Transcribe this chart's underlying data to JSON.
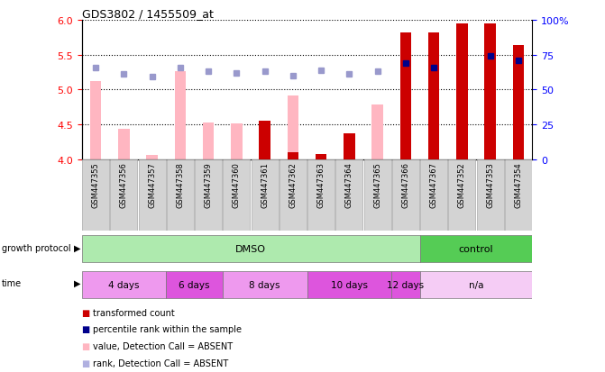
{
  "title": "GDS3802 / 1455509_at",
  "samples": [
    "GSM447355",
    "GSM447356",
    "GSM447357",
    "GSM447358",
    "GSM447359",
    "GSM447360",
    "GSM447361",
    "GSM447362",
    "GSM447363",
    "GSM447364",
    "GSM447365",
    "GSM447366",
    "GSM447367",
    "GSM447352",
    "GSM447353",
    "GSM447354"
  ],
  "red_values": [
    null,
    null,
    null,
    null,
    null,
    null,
    4.55,
    4.1,
    4.08,
    4.38,
    null,
    null,
    null,
    null,
    null,
    null
  ],
  "red_dark_values": [
    null,
    null,
    null,
    null,
    null,
    null,
    null,
    null,
    null,
    null,
    null,
    5.82,
    5.82,
    5.95,
    5.95,
    5.63
  ],
  "pink_values": [
    5.12,
    4.44,
    4.06,
    5.26,
    4.53,
    4.52,
    null,
    4.92,
    null,
    null,
    4.78,
    null,
    null,
    null,
    null,
    null
  ],
  "blue_dark_values": [
    null,
    null,
    null,
    null,
    null,
    null,
    null,
    null,
    null,
    null,
    null,
    5.38,
    5.32,
    null,
    5.48,
    5.42
  ],
  "blue_light_values": [
    5.32,
    5.22,
    5.18,
    5.32,
    5.26,
    5.24,
    5.26,
    5.2,
    5.28,
    5.22,
    5.26,
    null,
    null,
    null,
    null,
    null
  ],
  "ylim": [
    4.0,
    6.0
  ],
  "y2lim": [
    0,
    100
  ],
  "yticks": [
    4.0,
    4.5,
    5.0,
    5.5,
    6.0
  ],
  "y2ticks": [
    0,
    25,
    50,
    75,
    100
  ],
  "growth_protocol_groups": [
    {
      "label": "DMSO",
      "start": 0,
      "end": 12,
      "color": "#aeeaae"
    },
    {
      "label": "control",
      "start": 12,
      "end": 16,
      "color": "#55cc55"
    }
  ],
  "time_groups": [
    {
      "label": "4 days",
      "start": 0,
      "end": 3,
      "color": "#ee99ee"
    },
    {
      "label": "6 days",
      "start": 3,
      "end": 5,
      "color": "#dd55dd"
    },
    {
      "label": "8 days",
      "start": 5,
      "end": 8,
      "color": "#ee99ee"
    },
    {
      "label": "10 days",
      "start": 8,
      "end": 11,
      "color": "#dd55dd"
    },
    {
      "label": "12 days",
      "start": 11,
      "end": 12,
      "color": "#dd55dd"
    },
    {
      "label": "n/a",
      "start": 12,
      "end": 16,
      "color": "#f5ccf5"
    }
  ],
  "legend_items": [
    {
      "label": "transformed count",
      "color": "#CC0000"
    },
    {
      "label": "percentile rank within the sample",
      "color": "#00008B"
    },
    {
      "label": "value, Detection Call = ABSENT",
      "color": "#FFB6C1"
    },
    {
      "label": "rank, Detection Call = ABSENT",
      "color": "#B0B0E0"
    }
  ],
  "bar_width": 0.4,
  "marker_size": 5
}
